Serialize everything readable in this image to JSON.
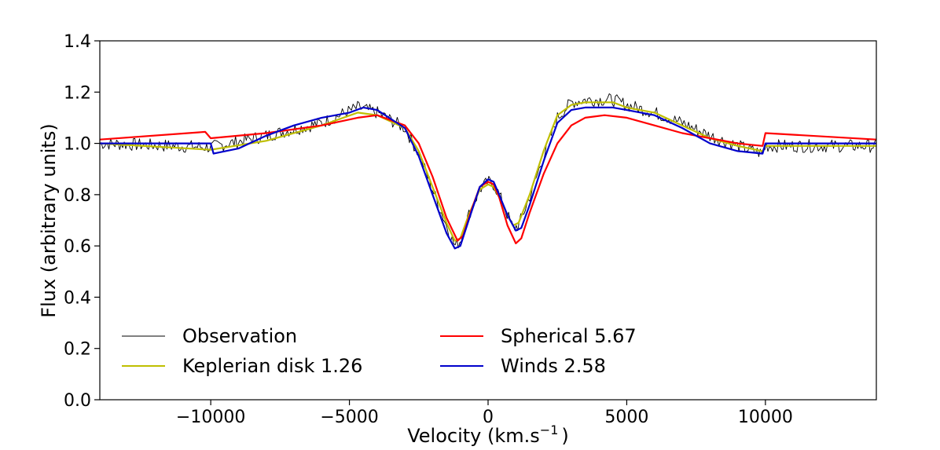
{
  "chart_data": {
    "type": "line",
    "title": "",
    "xlabel": "Velocity (km.s",
    "xlabel_sup": "−1",
    "xlabel_suffix": ")",
    "ylabel": "Flux (arbitrary units)",
    "xlim": [
      -14000,
      14000
    ],
    "ylim": [
      0.0,
      1.4
    ],
    "xticks": [
      -10000,
      -5000,
      0,
      5000,
      10000
    ],
    "xtick_labels": [
      "−10000",
      "−5000",
      "0",
      "5000",
      "10000"
    ],
    "yticks": [
      0.0,
      0.2,
      0.4,
      0.6,
      0.8,
      1.0,
      1.2,
      1.4
    ],
    "ytick_labels": [
      "0.0",
      "0.2",
      "0.4",
      "0.6",
      "0.8",
      "1.0",
      "1.2",
      "1.4"
    ],
    "grid": false,
    "legend_position": "lower-left",
    "series": [
      {
        "name": "Observation",
        "legend_label": "Observation",
        "color": "#000000",
        "noise": 0.016,
        "x": [
          -14000,
          -10000,
          -8000,
          -6000,
          -4700,
          -4000,
          -3000,
          -2500,
          -2000,
          -1500,
          -1200,
          -1000,
          -700,
          -300,
          0,
          200,
          400,
          700,
          900,
          1100,
          1500,
          2000,
          2500,
          3000,
          3500,
          4500,
          5000,
          6000,
          7000,
          8000,
          9000,
          9900,
          10000,
          14000
        ],
        "values": [
          1.0,
          0.985,
          1.03,
          1.08,
          1.14,
          1.12,
          1.06,
          0.96,
          0.82,
          0.68,
          0.6,
          0.62,
          0.72,
          0.82,
          0.85,
          0.84,
          0.8,
          0.72,
          0.67,
          0.68,
          0.79,
          0.95,
          1.1,
          1.16,
          1.17,
          1.17,
          1.15,
          1.12,
          1.08,
          1.03,
          0.99,
          0.96,
          0.99,
          0.99
        ]
      },
      {
        "name": "Keplerian disk",
        "legend_label": "Keplerian disk  1.26",
        "score": 1.26,
        "color": "#bfbf00",
        "x": [
          -14000,
          -10000,
          -8000,
          -6000,
          -4700,
          -4000,
          -3000,
          -2500,
          -2000,
          -1500,
          -1200,
          -1000,
          -700,
          -300,
          0,
          200,
          400,
          700,
          900,
          1100,
          1500,
          2000,
          2500,
          3000,
          3500,
          4500,
          5000,
          6000,
          7000,
          8000,
          9000,
          9900,
          10000,
          14000
        ],
        "values": [
          1.0,
          0.975,
          1.01,
          1.07,
          1.12,
          1.11,
          1.06,
          0.97,
          0.83,
          0.69,
          0.62,
          0.63,
          0.72,
          0.82,
          0.84,
          0.83,
          0.79,
          0.72,
          0.68,
          0.69,
          0.8,
          0.97,
          1.11,
          1.15,
          1.16,
          1.16,
          1.14,
          1.12,
          1.07,
          1.02,
          0.99,
          0.97,
          0.99,
          0.99
        ]
      },
      {
        "name": "Spherical",
        "legend_label": "Spherical  5.67",
        "score": 5.67,
        "color": "#ff0000",
        "x": [
          -14000,
          -10200,
          -10000,
          -8000,
          -6000,
          -4700,
          -4000,
          -3000,
          -2500,
          -2000,
          -1500,
          -1100,
          -900,
          -600,
          -300,
          0,
          200,
          400,
          700,
          1000,
          1200,
          1500,
          2000,
          2500,
          3000,
          3500,
          4200,
          5000,
          6000,
          7000,
          8000,
          9000,
          9900,
          10000,
          14000
        ],
        "values": [
          1.015,
          1.045,
          1.02,
          1.04,
          1.07,
          1.1,
          1.11,
          1.07,
          1.0,
          0.87,
          0.71,
          0.62,
          0.64,
          0.74,
          0.83,
          0.85,
          0.84,
          0.79,
          0.68,
          0.61,
          0.63,
          0.73,
          0.88,
          1.0,
          1.07,
          1.1,
          1.11,
          1.1,
          1.07,
          1.04,
          1.02,
          1.0,
          0.99,
          1.04,
          1.015
        ]
      },
      {
        "name": "Winds",
        "legend_label": "Winds  2.58",
        "score": 2.58,
        "color": "#0000cc",
        "x": [
          -14000,
          -10000,
          -9900,
          -9000,
          -8000,
          -7000,
          -6000,
          -5000,
          -4500,
          -4000,
          -3000,
          -2500,
          -2000,
          -1500,
          -1200,
          -1000,
          -700,
          -300,
          0,
          200,
          400,
          700,
          1000,
          1200,
          1500,
          2000,
          2500,
          3000,
          3500,
          4500,
          5000,
          6000,
          7000,
          8000,
          9000,
          9900,
          10000,
          14000
        ],
        "values": [
          1.0,
          1.0,
          0.96,
          0.98,
          1.03,
          1.07,
          1.1,
          1.12,
          1.14,
          1.13,
          1.06,
          0.95,
          0.8,
          0.65,
          0.59,
          0.6,
          0.7,
          0.83,
          0.86,
          0.85,
          0.8,
          0.72,
          0.66,
          0.67,
          0.76,
          0.93,
          1.08,
          1.13,
          1.14,
          1.14,
          1.13,
          1.11,
          1.06,
          1.0,
          0.97,
          0.96,
          1.0,
          1.0
        ]
      }
    ]
  }
}
